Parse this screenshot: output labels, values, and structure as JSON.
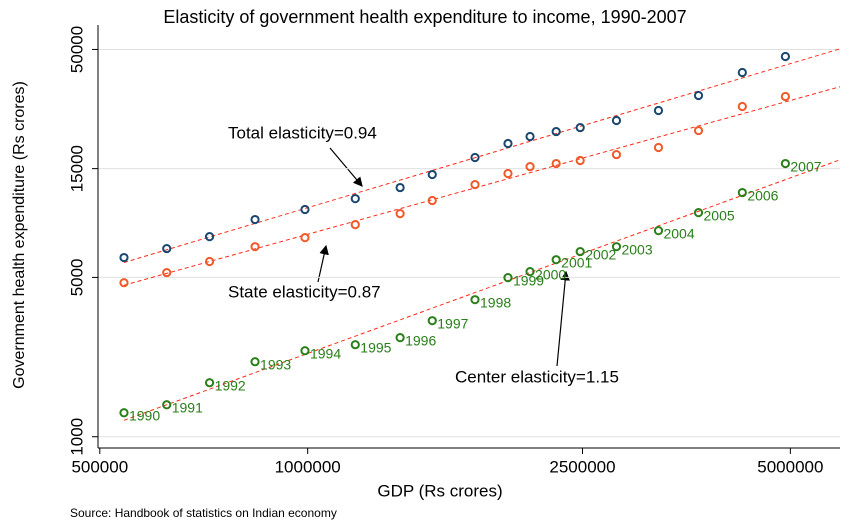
{
  "chart_data": {
    "type": "scatter",
    "title": "Elasticity of government health expenditure to income, 1990-2007",
    "x_label": "GDP (Rs crores)",
    "y_label": "Government health expenditure (Rs crores)",
    "source": "Source: Handbook of statistics on Indian economy",
    "log_x": true,
    "log_y": true,
    "grid": true,
    "fit_line_color": "#ff2a1a",
    "xlim": [
      497000,
      5900000
    ],
    "xticks": [
      500000,
      1000000,
      2500000,
      5000000
    ],
    "ylim": [
      920,
      64000
    ],
    "yticks": [
      1000,
      5000,
      15000,
      50000
    ],
    "x": [
      542000,
      625000,
      721000,
      839000,
      991000,
      1172000,
      1361000,
      1515000,
      1747000,
      1950000,
      2099000,
      2290000,
      2481000,
      2800000,
      3221000,
      3681000,
      4260000,
      4918000
    ],
    "series": [
      {
        "color": "#1a476f",
        "values": [
          6110,
          6690,
          7550,
          8970,
          9930,
          11080,
          12390,
          14130,
          16790,
          19330,
          20750,
          21810,
          22710,
          24390,
          26990,
          31410,
          39620,
          46560
        ]
      },
      {
        "color": "#f05a28",
        "values": [
          4740,
          5250,
          5870,
          6820,
          7470,
          8520,
          9520,
          10870,
          12770,
          14280,
          15310,
          15790,
          16280,
          17290,
          18570,
          22040,
          28100,
          31100
        ]
      },
      {
        "color": "#2a7f1a",
        "values": [
          1274,
          1381,
          1726,
          2134,
          2385,
          2534,
          2721,
          3230,
          3993,
          4990,
          5300,
          5980,
          6490,
          6820,
          8020,
          9620,
          11780,
          15790
        ],
        "point_labels": [
          1990,
          1991,
          1992,
          1993,
          1994,
          1995,
          1996,
          1997,
          1998,
          1999,
          2000,
          2001,
          2002,
          2003,
          2004,
          2005,
          2006,
          2007
        ]
      }
    ],
    "annotations": [
      "Total elasticity=0.94",
      "State elasticity=0.87",
      "Center elasticity=1.15"
    ]
  }
}
